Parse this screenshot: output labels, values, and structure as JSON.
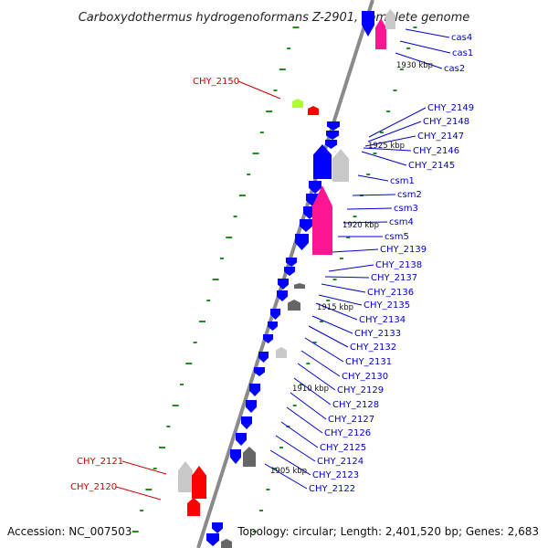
{
  "title": "Carboxydothermus hydrogenoformans Z-2901, complete genome",
  "footer": {
    "accession": "Accession: NC_007503",
    "topology": "Topology: circular; Length: 2,401,520 bp; Genes: 2,683"
  },
  "colors": {
    "backbone": "#8a8a8a",
    "blue": "#0000ff",
    "magenta": "#ff1493",
    "gray": "#c8c8c8",
    "darkgray": "#666666",
    "red": "#ff0000",
    "lime": "#adff2f",
    "tick": "#228b22",
    "label_right": "#0000cc",
    "label_left": "#cc0000"
  },
  "kbp_labels": [
    "1930 kbp",
    "1925 kbp",
    "1920 kbp",
    "1915 kbp",
    "1910 kbp",
    "1905 kbp"
  ],
  "genes_right": [
    "cas4",
    "cas1",
    "cas2",
    "CHY_2149",
    "CHY_2148",
    "CHY_2147",
    "CHY_2146",
    "CHY_2145",
    "csm1",
    "csm2",
    "csm3",
    "csm4",
    "csm5",
    "CHY_2139",
    "CHY_2138",
    "CHY_2137",
    "CHY_2136",
    "CHY_2135",
    "CHY_2134",
    "CHY_2133",
    "CHY_2132",
    "CHY_2131",
    "CHY_2130",
    "CHY_2129",
    "CHY_2128",
    "CHY_2127",
    "CHY_2126",
    "CHY_2125",
    "CHY_2124",
    "CHY_2123",
    "CHY_2122"
  ],
  "genes_left": [
    "CHY_2150",
    "CHY_2121",
    "CHY_2120"
  ]
}
